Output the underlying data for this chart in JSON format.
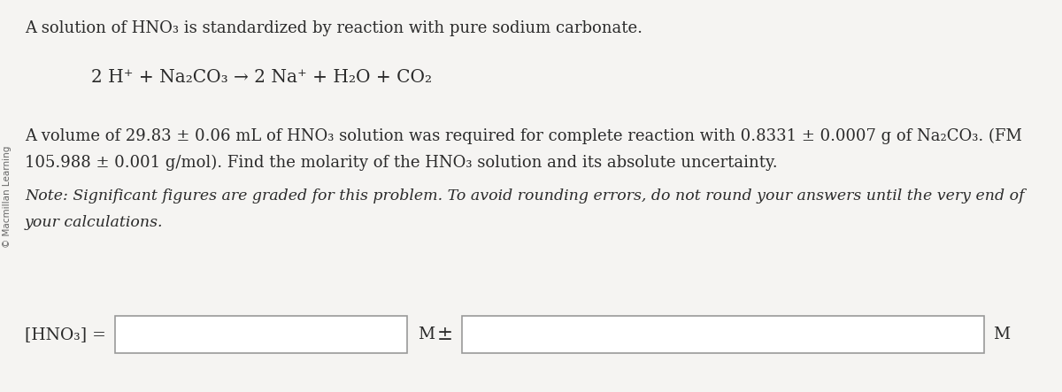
{
  "background_color": "#f5f4f2",
  "text_color": "#2a2a2a",
  "sidebar_text": "© Macmillan Learning",
  "line1": "A solution of HNO₃ is standardized by reaction with pure sodium carbonate.",
  "equation": "2 H⁺ + Na₂CO₃ → 2 Na⁺ + H₂O + CO₂",
  "line3a": "A volume of 29.83 ± 0.06 mL of HNO₃ solution was required for complete reaction with 0.8331 ± 0.0007 g of Na₂CO₃. (FM",
  "line3b": "105.988 ± 0.001 g/mol). Find the molarity of the HNO₃ solution and its absolute uncertainty.",
  "note_line1": "Note: Significant figures are graded for this problem. To avoid rounding errors, do not round your answers until the very end of",
  "note_line2": "your calculations.",
  "label_left": "[HNO₃] =",
  "label_m1": "M",
  "label_pm": "±",
  "label_m2": "M",
  "main_fontsize": 13.0,
  "equation_fontsize": 14.5,
  "note_fontsize": 12.5,
  "label_fontsize": 13.5,
  "sidebar_fontsize": 7.5
}
